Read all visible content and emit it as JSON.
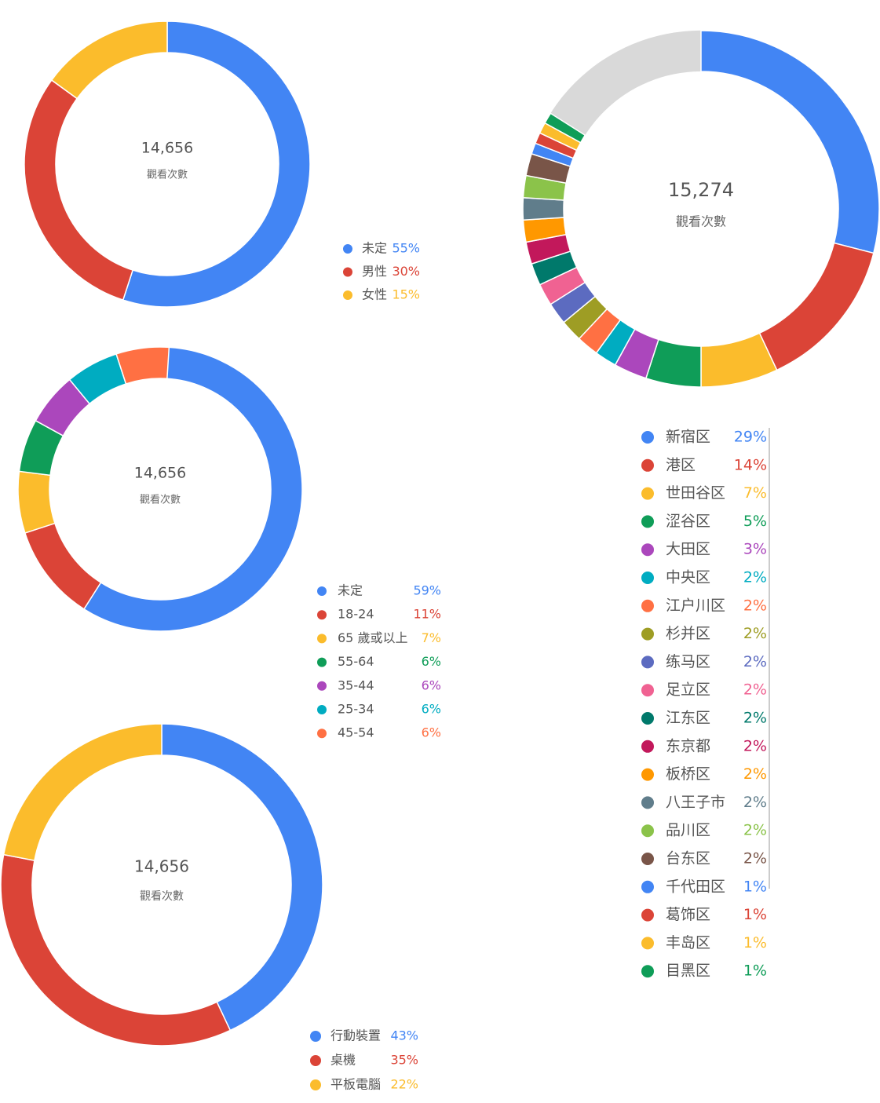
{
  "chart_data": [
    {
      "type": "donut",
      "center_value": {
        "value": 14656,
        "label": "14,656"
      },
      "center_label": "觀看次數",
      "categories": [
        "未定",
        "男性",
        "女性"
      ],
      "values": [
        55,
        30,
        15
      ],
      "value_labels": [
        "55%",
        "30%",
        "15%"
      ],
      "colors": [
        "#4285f4",
        "#db4437",
        "#fbbc2c"
      ]
    },
    {
      "type": "donut",
      "center_value": {
        "value": 14656,
        "label": "14,656"
      },
      "center_label": "觀看次數",
      "categories": [
        "未定",
        "18-24",
        "65 歲或以上",
        "55-64",
        "35-44",
        "25-34",
        "45-54"
      ],
      "values": [
        59,
        11,
        7,
        6,
        6,
        6,
        6
      ],
      "value_labels": [
        "59%",
        "11%",
        "7%",
        "6%",
        "6%",
        "6%",
        "6%"
      ],
      "colors": [
        "#4285f4",
        "#db4437",
        "#fbbc2c",
        "#0f9d58",
        "#ab47bc",
        "#00acc1",
        "#ff7043"
      ]
    },
    {
      "type": "donut",
      "center_value": {
        "value": 14656,
        "label": "14,656"
      },
      "center_label": "觀看次數",
      "categories": [
        "行動裝置",
        "桌機",
        "平板電腦"
      ],
      "values": [
        43,
        35,
        22
      ],
      "value_labels": [
        "43%",
        "35%",
        "22%"
      ],
      "colors": [
        "#4285f4",
        "#db4437",
        "#fbbc2c"
      ]
    },
    {
      "type": "donut",
      "center_value": {
        "value": 15274,
        "label": "15,274"
      },
      "center_label": "觀看次數",
      "categories": [
        "新宿区",
        "港区",
        "世田谷区",
        "涩谷区",
        "大田区",
        "中央区",
        "江户川区",
        "杉并区",
        "练马区",
        "足立区",
        "江东区",
        "东京都",
        "板桥区",
        "八王子市",
        "品川区",
        "台东区",
        "千代田区",
        "葛饰区",
        "丰岛区",
        "目黑区"
      ],
      "values": [
        29,
        14,
        7,
        5,
        3,
        2,
        2,
        2,
        2,
        2,
        2,
        2,
        2,
        2,
        2,
        2,
        1,
        1,
        1,
        1
      ],
      "value_labels": [
        "29%",
        "14%",
        "7%",
        "5%",
        "3%",
        "2%",
        "2%",
        "2%",
        "2%",
        "2%",
        "2%",
        "2%",
        "2%",
        "2%",
        "2%",
        "2%",
        "1%",
        "1%",
        "1%",
        "1%"
      ],
      "colors": [
        "#4285f4",
        "#db4437",
        "#fbbc2c",
        "#0f9d58",
        "#ab47bc",
        "#00acc1",
        "#ff7043",
        "#9e9d24",
        "#5c6bc0",
        "#f06292",
        "#00796b",
        "#c2185b",
        "#ff9800",
        "#607d8b",
        "#8bc34a",
        "#795548",
        "#4285f4",
        "#db4437",
        "#fbbc2c",
        "#0f9d58"
      ]
    }
  ]
}
